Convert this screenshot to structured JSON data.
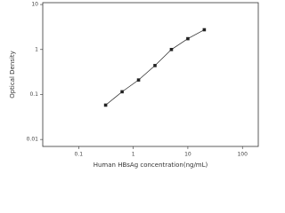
{
  "chart_data": {
    "type": "line",
    "x_label": "Human HBsAg concentration(ng/mL)",
    "y_label": "Optical Density",
    "x": [
      0.312,
      0.625,
      1.25,
      2.5,
      5,
      10,
      20
    ],
    "series": [
      {
        "color": "#222222",
        "values": [
          0.058,
          0.115,
          0.21,
          0.44,
          1.0,
          1.74,
          2.75
        ]
      }
    ],
    "xscale": "log",
    "yscale": "log",
    "xlim": [
      0.022,
      195
    ],
    "ylim": [
      0.007,
      11
    ],
    "xticks": [
      0.1,
      1,
      10,
      100
    ],
    "yticks": [
      0.01,
      0.1,
      1,
      10
    ]
  }
}
